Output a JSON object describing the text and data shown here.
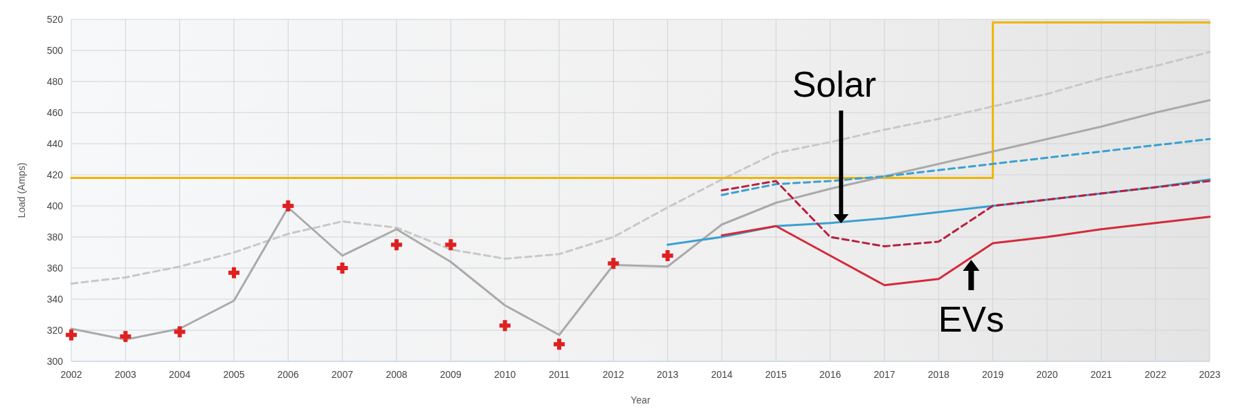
{
  "chart_data": {
    "type": "line",
    "xlabel": "Year",
    "ylabel": "Load (Amps)",
    "xlim": [
      2002,
      2023
    ],
    "ylim": [
      300,
      520
    ],
    "xticks": [
      2002,
      2003,
      2004,
      2005,
      2006,
      2007,
      2008,
      2009,
      2010,
      2011,
      2012,
      2013,
      2014,
      2015,
      2016,
      2017,
      2018,
      2019,
      2020,
      2021,
      2022,
      2023
    ],
    "yticks": [
      300,
      320,
      340,
      360,
      380,
      400,
      420,
      440,
      460,
      480,
      500,
      520
    ],
    "grid": true,
    "series": [
      {
        "color": "#c8c8c8",
        "line_style": "dashed",
        "x": [
          2002,
          2003,
          2004,
          2005,
          2006,
          2007,
          2008,
          2009,
          2010,
          2011,
          2012,
          2013,
          2014,
          2015,
          2016,
          2017,
          2018,
          2019,
          2020,
          2021,
          2022,
          2023
        ],
        "values": [
          350,
          354,
          361,
          370,
          382,
          390,
          386,
          372,
          366,
          369,
          380,
          399,
          417,
          434,
          441,
          449,
          456,
          464,
          472,
          482,
          490,
          499
        ]
      },
      {
        "type": "step",
        "color": "#f0b400",
        "line_style": "solid",
        "x": [
          2002,
          2019,
          2023
        ],
        "values": [
          418,
          518,
          518
        ]
      },
      {
        "type": "line",
        "color": "#aaaaaa",
        "line_style": "solid",
        "x": [
          2002,
          2003,
          2004,
          2005,
          2006,
          2007,
          2008,
          2009,
          2010,
          2011,
          2012,
          2013,
          2014,
          2015,
          2016,
          2017,
          2018,
          2019,
          2020,
          2021,
          2022,
          2023
        ],
        "values": [
          321,
          314,
          321,
          339,
          399,
          368,
          385,
          364,
          336,
          317,
          362,
          361,
          388,
          402,
          411,
          419,
          427,
          435,
          443,
          451,
          460,
          468
        ]
      },
      {
        "type": "line",
        "color": "#3aa0d0",
        "line_style": "dashed",
        "x": [
          2014,
          2015,
          2016,
          2017,
          2018,
          2019,
          2020,
          2021,
          2022,
          2023
        ],
        "values": [
          407,
          414,
          416,
          419,
          423,
          427,
          431,
          435,
          439,
          443
        ]
      },
      {
        "type": "line",
        "color": "#3aa0d0",
        "line_style": "solid",
        "x": [
          2013,
          2014,
          2015,
          2016,
          2017,
          2018,
          2019,
          2020,
          2021,
          2022,
          2023
        ],
        "values": [
          375,
          380,
          387,
          389,
          392,
          396,
          400,
          404,
          408,
          412,
          417
        ]
      },
      {
        "type": "line",
        "color": "#b82040",
        "line_style": "dashed",
        "x": [
          2014,
          2015,
          2016,
          2017,
          2018,
          2019,
          2020,
          2021,
          2022,
          2023
        ],
        "values": [
          410,
          416,
          380,
          374,
          377,
          400,
          404,
          408,
          412,
          416
        ]
      },
      {
        "type": "line",
        "color": "#d42a3a",
        "line_style": "solid",
        "x": [
          2014,
          2015,
          2016,
          2017,
          2018,
          2019,
          2020,
          2021,
          2022,
          2023
        ],
        "values": [
          381,
          387,
          368,
          349,
          353,
          376,
          380,
          385,
          389,
          393
        ]
      },
      {
        "type": "scatter",
        "color": "#e02020",
        "marker": "cross",
        "x": [
          2002,
          2003,
          2004,
          2005,
          2006,
          2007,
          2008,
          2009,
          2010,
          2011,
          2012,
          2013
        ],
        "values": [
          317,
          316,
          319,
          357,
          400,
          360,
          375,
          375,
          323,
          311,
          363,
          368
        ]
      }
    ],
    "annotations": [
      "Solar",
      "EVs"
    ]
  }
}
